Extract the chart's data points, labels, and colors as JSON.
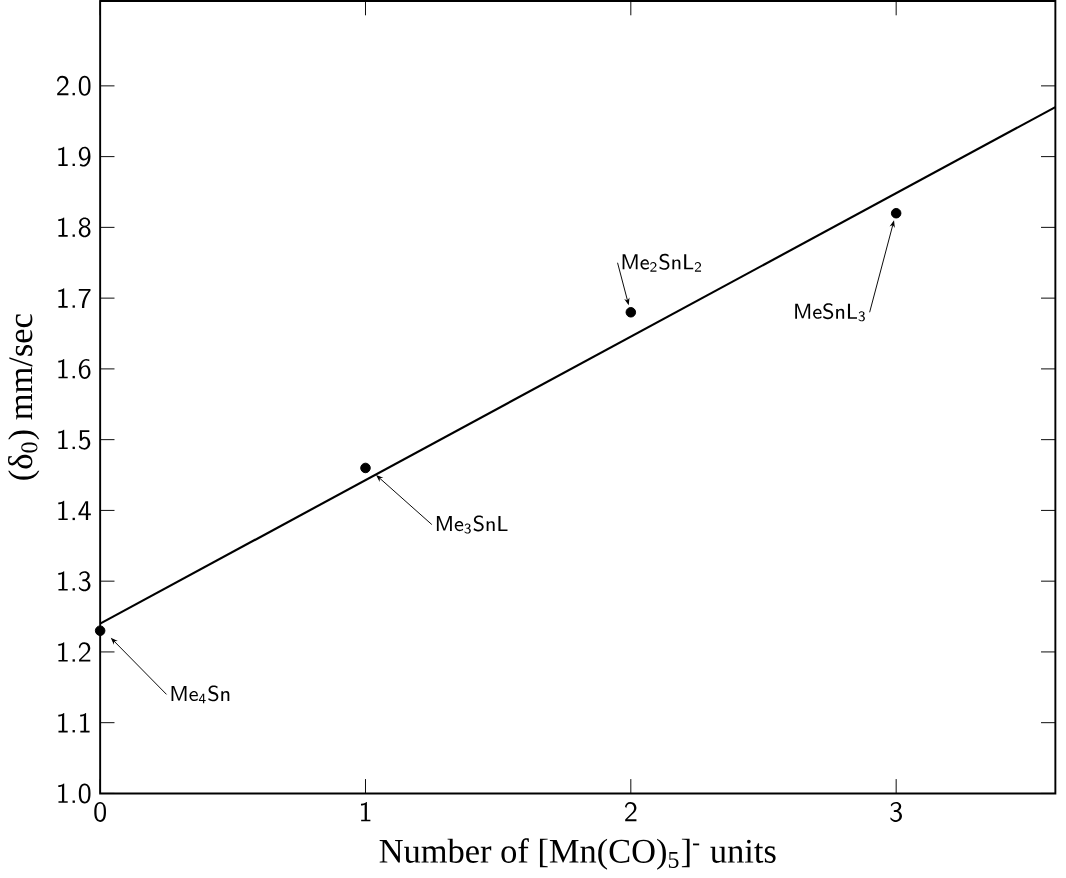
{
  "chart_data": {
    "type": "scatter",
    "xlabel": "Number of [Mn(CO)$_{5}$]$^{-}$ units",
    "ylabel": "(δ$_{0}$) mm/sec",
    "xlim": [
      0,
      3.6
    ],
    "ylim": [
      1.0,
      2.12
    ],
    "xticks": [
      0,
      1,
      2,
      3
    ],
    "yticks": [
      {
        "value": 1.0,
        "label": "1.0"
      },
      1.1,
      1.2,
      1.3,
      1.4,
      1.5,
      1.6,
      1.7,
      1.8,
      1.9,
      {
        "value": 2.0,
        "label": "2.0"
      }
    ],
    "grid": false,
    "series": [
      {
        "x": [
          0,
          1,
          2,
          3
        ],
        "values": [
          1.23,
          1.46,
          1.68,
          1.82
        ],
        "color": "#000000",
        "marker": "circle"
      },
      {
        "type": "line",
        "x": [
          0,
          3.6
        ],
        "values": [
          1.24,
          1.97
        ],
        "color": "#000000",
        "marker": "none",
        "line_style": "solid"
      }
    ],
    "annotations": [
      {
        "text": "Me$_{4}$Sn",
        "x": 0,
        "y": 1.23
      },
      {
        "text": "Me$_{3}$SnL",
        "x": 1,
        "y": 1.46
      },
      {
        "text": "Me$_{2}$SnL$_{2}$",
        "x": 2,
        "y": 1.68
      },
      {
        "text": "MeSnL$_{3}$",
        "x": 3,
        "y": 1.82
      }
    ]
  }
}
